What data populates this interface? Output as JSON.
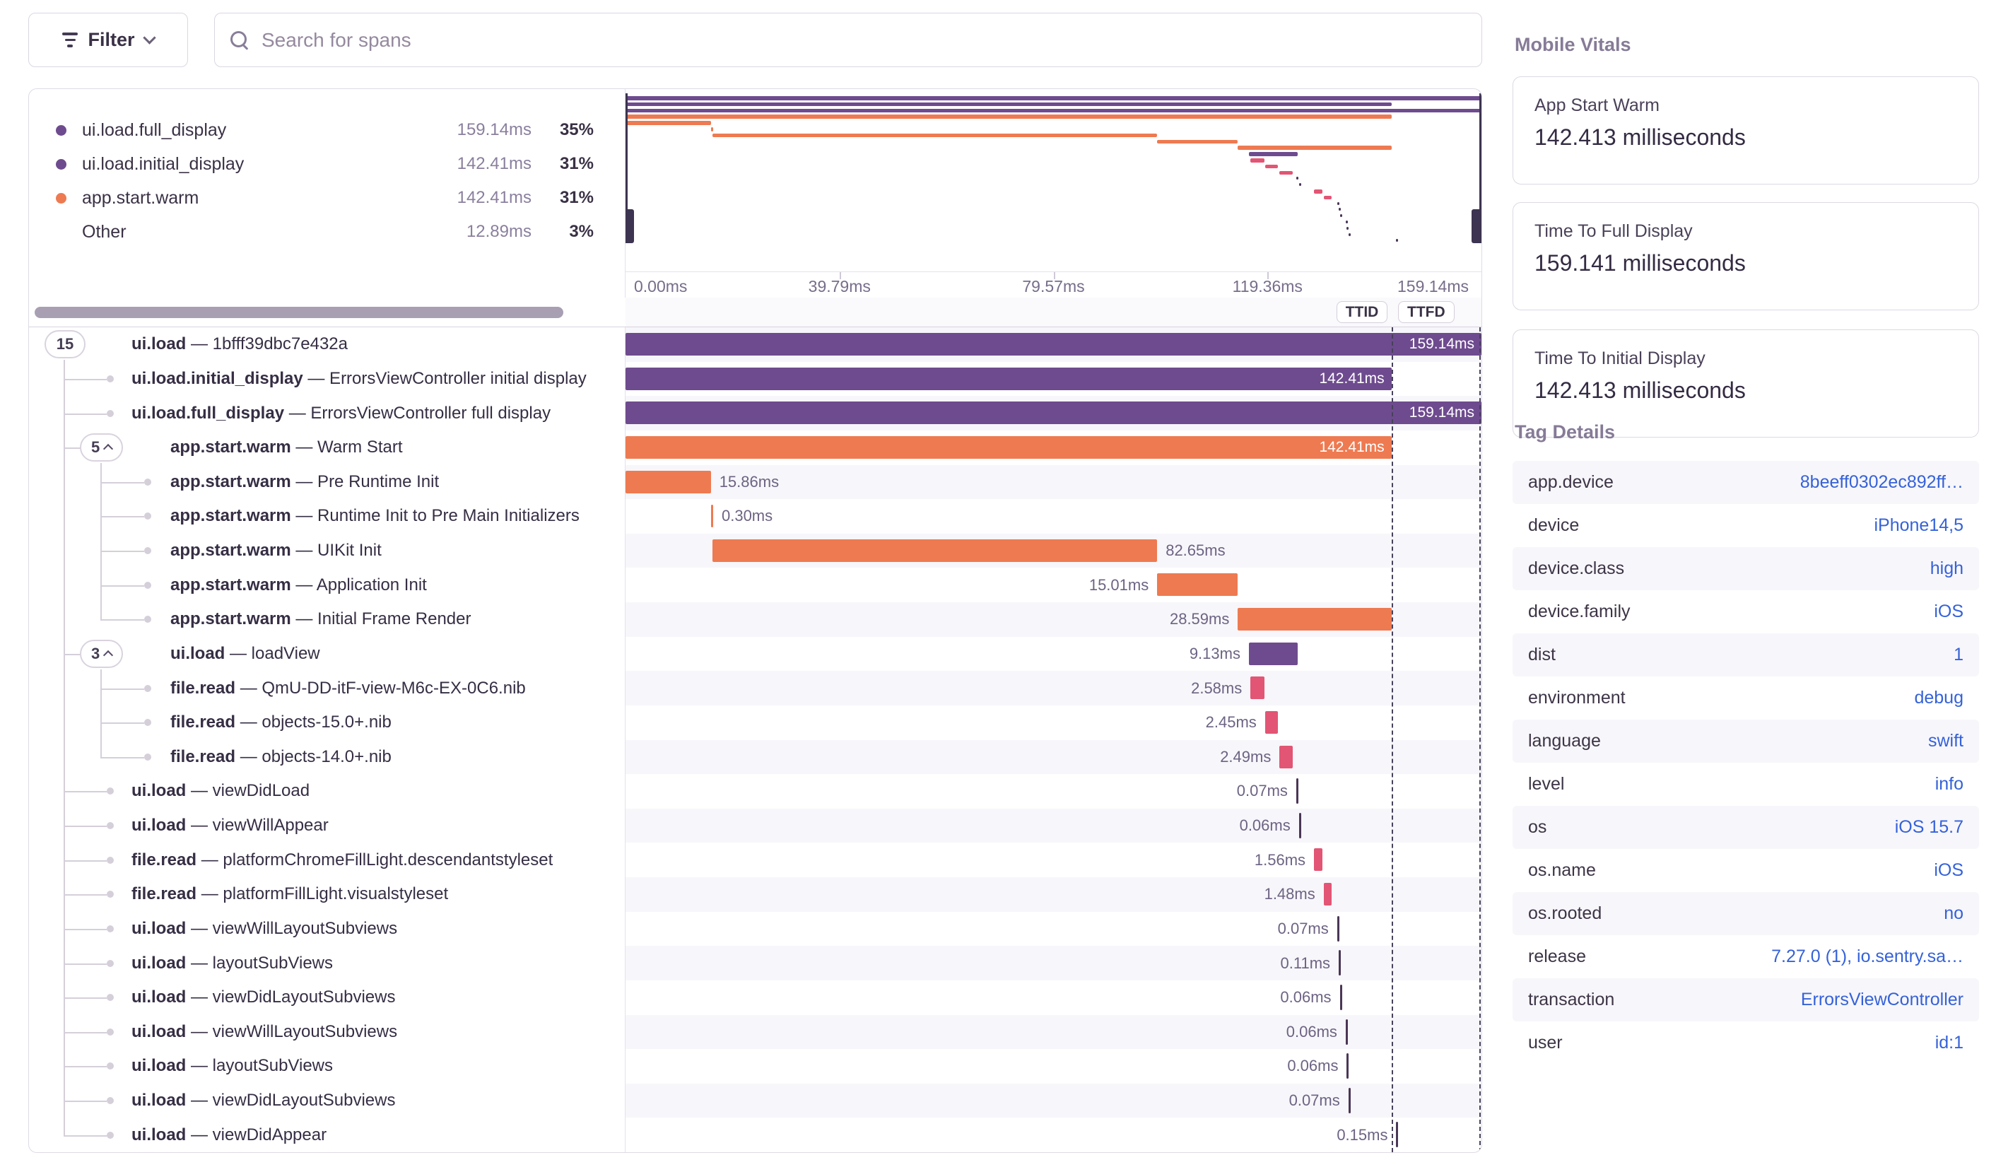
{
  "toolbar": {
    "filter_label": "Filter",
    "search_placeholder": "Search for spans"
  },
  "colors": {
    "purple": "#6e4b8e",
    "orange": "#ee7a51",
    "pink": "#e25574",
    "tick": "#4a3656",
    "link_blue": "#3562d9"
  },
  "legend": {
    "items": [
      {
        "label": "ui.load.full_display",
        "duration": "159.14ms",
        "percent": "35%",
        "color": "purple"
      },
      {
        "label": "ui.load.initial_display",
        "duration": "142.41ms",
        "percent": "31%",
        "color": "purple"
      },
      {
        "label": "app.start.warm",
        "duration": "142.41ms",
        "percent": "31%",
        "color": "orange"
      },
      {
        "label": "Other",
        "duration": "12.89ms",
        "percent": "3%",
        "color": null
      }
    ]
  },
  "minimap": {
    "total_ms": 159.14,
    "axis_ticks": [
      {
        "label": "0.00ms",
        "ms": 0,
        "align": "left"
      },
      {
        "label": "39.79ms",
        "ms": 39.79,
        "align": "center"
      },
      {
        "label": "79.57ms",
        "ms": 79.57,
        "align": "center"
      },
      {
        "label": "119.36ms",
        "ms": 119.36,
        "align": "center"
      },
      {
        "label": "159.14ms",
        "ms": 159.14,
        "align": "right"
      }
    ]
  },
  "markers": {
    "ttid_label": "TTID",
    "ttfd_label": "TTFD",
    "ttid_ms": 142.41,
    "ttfd_ms": 159.14
  },
  "spans": [
    {
      "op": "ui.load",
      "desc": "1bfff39dbc7e432a",
      "badge": "15",
      "chevron": false,
      "level": 0,
      "start": 0,
      "dur": 159.14,
      "kind": "bar",
      "color": "purple",
      "label": "159.14ms",
      "labelPos": "inside"
    },
    {
      "op": "ui.load.initial_display",
      "desc": "ErrorsViewController initial display",
      "badge": null,
      "chevron": false,
      "level": 1,
      "start": 0,
      "dur": 142.41,
      "kind": "bar",
      "color": "purple",
      "label": "142.41ms",
      "labelPos": "inside"
    },
    {
      "op": "ui.load.full_display",
      "desc": "ErrorsViewController full display",
      "badge": null,
      "chevron": false,
      "level": 1,
      "start": 0,
      "dur": 159.14,
      "kind": "bar",
      "color": "purple",
      "label": "159.14ms",
      "labelPos": "inside"
    },
    {
      "op": "app.start.warm",
      "desc": "Warm Start",
      "badge": "5",
      "chevron": true,
      "level": 1,
      "start": 0,
      "dur": 142.41,
      "kind": "bar",
      "color": "orange",
      "label": "142.41ms",
      "labelPos": "inside"
    },
    {
      "op": "app.start.warm",
      "desc": "Pre Runtime Init",
      "badge": null,
      "chevron": false,
      "level": 2,
      "start": 0,
      "dur": 15.86,
      "kind": "bar",
      "color": "orange",
      "label": "15.86ms",
      "labelPos": "right"
    },
    {
      "op": "app.start.warm",
      "desc": "Runtime Init to Pre Main Initializers",
      "badge": null,
      "chevron": false,
      "level": 2,
      "start": 15.9,
      "dur": 0.3,
      "kind": "thin",
      "color": "orange",
      "label": "0.30ms",
      "labelPos": "right"
    },
    {
      "op": "app.start.warm",
      "desc": "UIKit Init",
      "badge": null,
      "chevron": false,
      "level": 2,
      "start": 16.2,
      "dur": 82.65,
      "kind": "bar",
      "color": "orange",
      "label": "82.65ms",
      "labelPos": "right"
    },
    {
      "op": "app.start.warm",
      "desc": "Application Init",
      "badge": null,
      "chevron": false,
      "level": 2,
      "start": 98.85,
      "dur": 15.01,
      "kind": "bar",
      "color": "orange",
      "label": "15.01ms",
      "labelPos": "left"
    },
    {
      "op": "app.start.warm",
      "desc": "Initial Frame Render",
      "badge": null,
      "chevron": false,
      "level": 2,
      "start": 113.85,
      "dur": 28.59,
      "kind": "bar",
      "color": "orange",
      "label": "28.59ms",
      "labelPos": "left"
    },
    {
      "op": "ui.load",
      "desc": "loadView",
      "badge": "3",
      "chevron": true,
      "level": 1,
      "start": 115.9,
      "dur": 9.13,
      "kind": "bar",
      "color": "purple",
      "label": "9.13ms",
      "labelPos": "left"
    },
    {
      "op": "file.read",
      "desc": "QmU-DD-itF-view-M6c-EX-0C6.nib",
      "badge": null,
      "chevron": false,
      "level": 2,
      "start": 116.2,
      "dur": 2.58,
      "kind": "bar",
      "color": "pink",
      "label": "2.58ms",
      "labelPos": "left"
    },
    {
      "op": "file.read",
      "desc": "objects-15.0+.nib",
      "badge": null,
      "chevron": false,
      "level": 2,
      "start": 118.9,
      "dur": 2.45,
      "kind": "bar",
      "color": "pink",
      "label": "2.45ms",
      "labelPos": "left"
    },
    {
      "op": "file.read",
      "desc": "objects-14.0+.nib",
      "badge": null,
      "chevron": false,
      "level": 2,
      "start": 121.6,
      "dur": 2.49,
      "kind": "bar",
      "color": "pink",
      "label": "2.49ms",
      "labelPos": "left"
    },
    {
      "op": "ui.load",
      "desc": "viewDidLoad",
      "badge": null,
      "chevron": false,
      "level": 1,
      "start": 124.7,
      "dur": 0.07,
      "kind": "tick",
      "color": "tick",
      "label": "0.07ms",
      "labelPos": "left"
    },
    {
      "op": "ui.load",
      "desc": "viewWillAppear",
      "badge": null,
      "chevron": false,
      "level": 1,
      "start": 125.2,
      "dur": 0.06,
      "kind": "tick",
      "color": "tick",
      "label": "0.06ms",
      "labelPos": "left"
    },
    {
      "op": "file.read",
      "desc": "platformChromeFillLight.descendantstyleset",
      "badge": null,
      "chevron": false,
      "level": 1,
      "start": 128.0,
      "dur": 1.56,
      "kind": "bar",
      "color": "pink",
      "label": "1.56ms",
      "labelPos": "left"
    },
    {
      "op": "file.read",
      "desc": "platformFillLight.visualstyleset",
      "badge": null,
      "chevron": false,
      "level": 1,
      "start": 129.8,
      "dur": 1.48,
      "kind": "bar",
      "color": "pink",
      "label": "1.48ms",
      "labelPos": "left"
    },
    {
      "op": "ui.load",
      "desc": "viewWillLayoutSubviews",
      "badge": null,
      "chevron": false,
      "level": 1,
      "start": 132.3,
      "dur": 0.07,
      "kind": "tick",
      "color": "tick",
      "label": "0.07ms",
      "labelPos": "left"
    },
    {
      "op": "ui.load",
      "desc": "layoutSubViews",
      "badge": null,
      "chevron": false,
      "level": 1,
      "start": 132.6,
      "dur": 0.11,
      "kind": "tick",
      "color": "tick",
      "label": "0.11ms",
      "labelPos": "left"
    },
    {
      "op": "ui.load",
      "desc": "viewDidLayoutSubviews",
      "badge": null,
      "chevron": false,
      "level": 1,
      "start": 132.8,
      "dur": 0.06,
      "kind": "tick",
      "color": "tick",
      "label": "0.06ms",
      "labelPos": "left"
    },
    {
      "op": "ui.load",
      "desc": "viewWillLayoutSubviews",
      "badge": null,
      "chevron": false,
      "level": 1,
      "start": 133.9,
      "dur": 0.06,
      "kind": "tick",
      "color": "tick",
      "label": "0.06ms",
      "labelPos": "left"
    },
    {
      "op": "ui.load",
      "desc": "layoutSubViews",
      "badge": null,
      "chevron": false,
      "level": 1,
      "start": 134.1,
      "dur": 0.06,
      "kind": "tick",
      "color": "tick",
      "label": "0.06ms",
      "labelPos": "left"
    },
    {
      "op": "ui.load",
      "desc": "viewDidLayoutSubviews",
      "badge": null,
      "chevron": false,
      "level": 1,
      "start": 134.4,
      "dur": 0.07,
      "kind": "tick",
      "color": "tick",
      "label": "0.07ms",
      "labelPos": "left"
    },
    {
      "op": "ui.load",
      "desc": "viewDidAppear",
      "badge": null,
      "chevron": false,
      "level": 1,
      "start": 143.3,
      "dur": 0.15,
      "kind": "tick",
      "color": "tick",
      "label": "0.15ms",
      "labelPos": "left"
    }
  ],
  "vitals": {
    "title": "Mobile Vitals",
    "cards": [
      {
        "label": "App Start Warm",
        "value": "142.413 milliseconds"
      },
      {
        "label": "Time To Full Display",
        "value": "159.141 milliseconds"
      },
      {
        "label": "Time To Initial Display",
        "value": "142.413 milliseconds"
      }
    ]
  },
  "tags": {
    "title": "Tag Details",
    "rows": [
      {
        "key": "app.device",
        "value": "8beeff0302ec892ff…"
      },
      {
        "key": "device",
        "value": "iPhone14,5"
      },
      {
        "key": "device.class",
        "value": "high"
      },
      {
        "key": "device.family",
        "value": "iOS"
      },
      {
        "key": "dist",
        "value": "1"
      },
      {
        "key": "environment",
        "value": "debug"
      },
      {
        "key": "language",
        "value": "swift"
      },
      {
        "key": "level",
        "value": "info"
      },
      {
        "key": "os",
        "value": "iOS 15.7"
      },
      {
        "key": "os.name",
        "value": "iOS"
      },
      {
        "key": "os.rooted",
        "value": "no"
      },
      {
        "key": "release",
        "value": "7.27.0 (1), io.sentry.sa…"
      },
      {
        "key": "transaction",
        "value": "ErrorsViewController"
      },
      {
        "key": "user",
        "value": "id:1"
      }
    ]
  }
}
